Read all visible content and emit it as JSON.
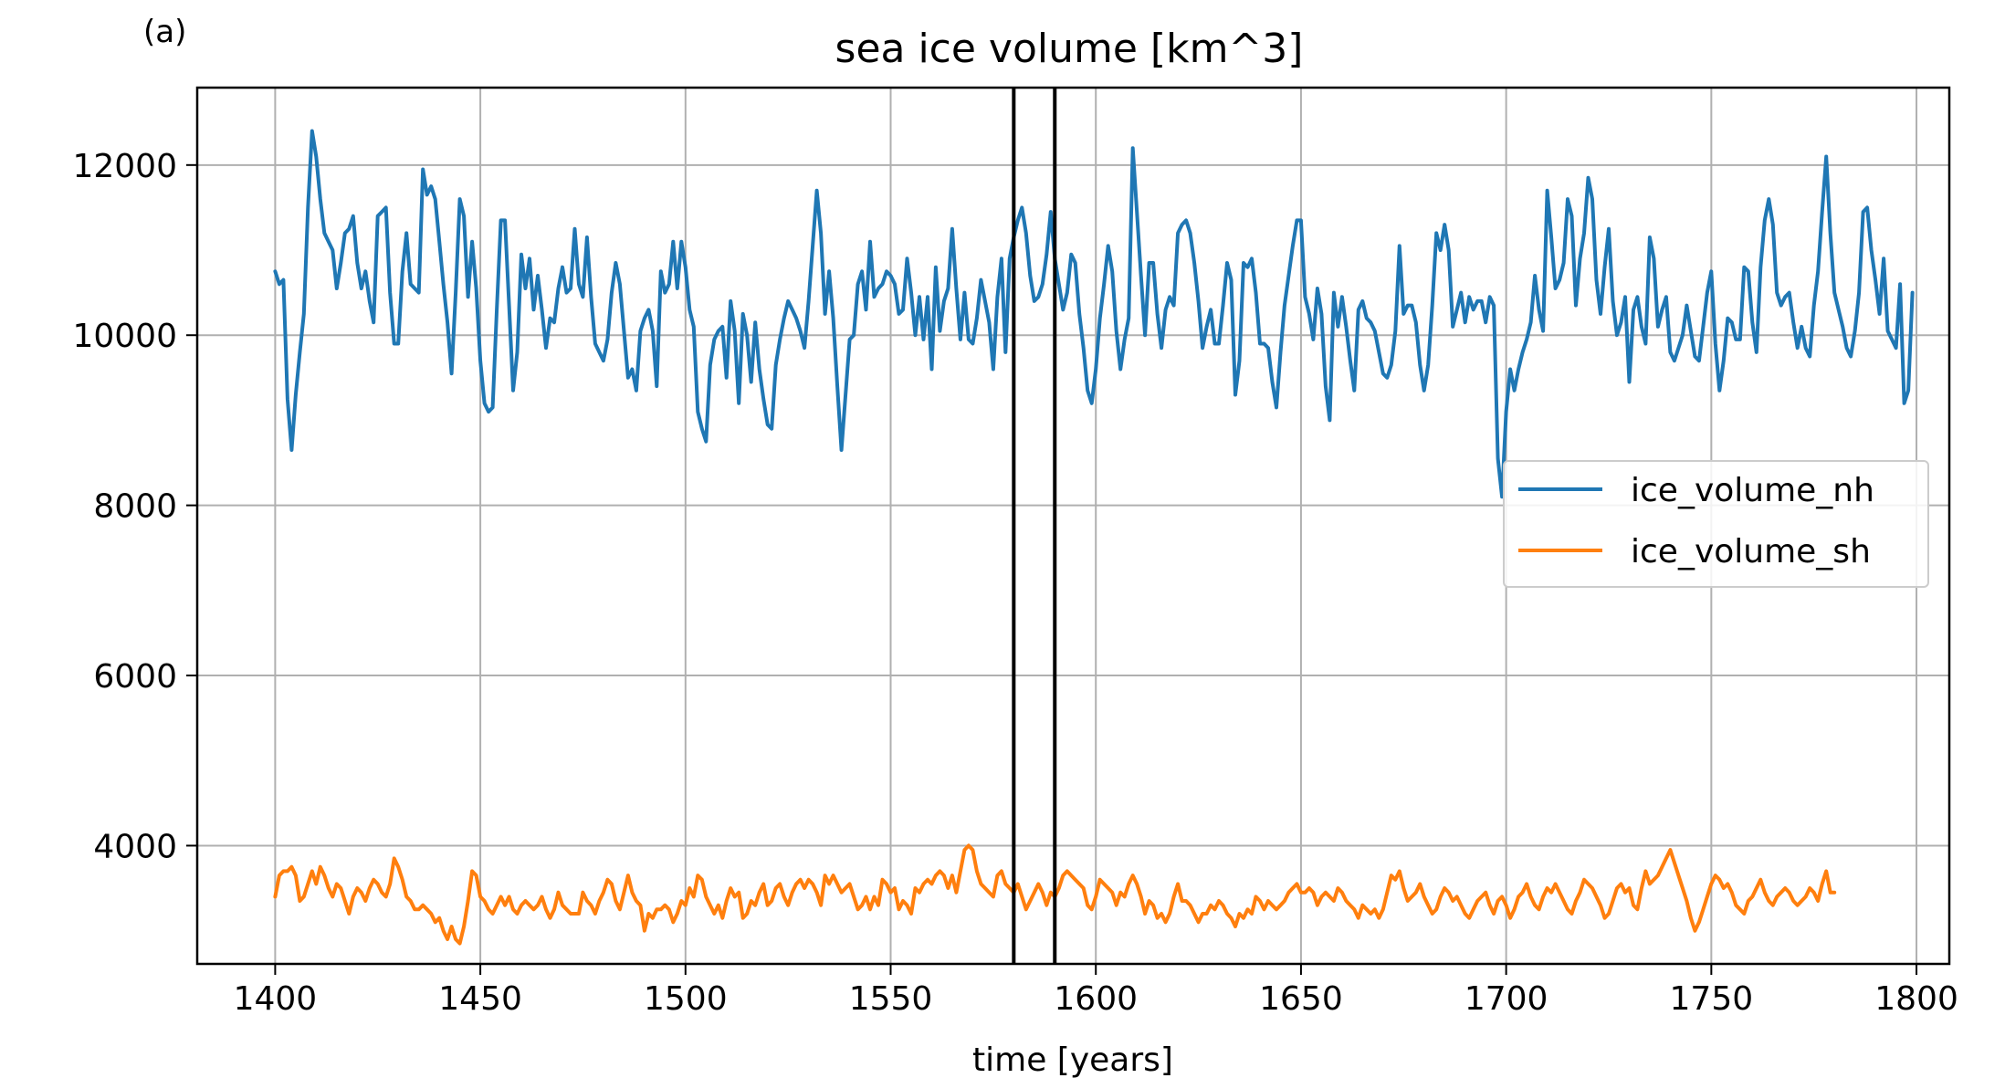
{
  "panel_label": "(a)",
  "chart_data": {
    "type": "line",
    "title": "sea ice volume [km^3]",
    "xlabel": "time [years]",
    "ylabel": "",
    "xlim": [
      1381,
      1808
    ],
    "ylim": [
      2610,
      12910
    ],
    "xticks": [
      1400,
      1450,
      1500,
      1550,
      1600,
      1650,
      1700,
      1750,
      1800
    ],
    "yticks": [
      4000,
      6000,
      8000,
      10000,
      12000
    ],
    "xtick_labels": [
      "1400",
      "1450",
      "1500",
      "1550",
      "1600",
      "1650",
      "1700",
      "1750",
      "1800"
    ],
    "ytick_labels": [
      "4000",
      "6000",
      "8000",
      "10000",
      "12000"
    ],
    "grid": true,
    "legend_position": "center-right",
    "vlines": [
      1580,
      1590
    ],
    "vline_color": "#000000",
    "x_start": 1400,
    "x_step": 1,
    "series": [
      {
        "name": "ice_volume_nh",
        "color": "#1f77b4",
        "values": [
          10750,
          10600,
          10650,
          9250,
          8650,
          9300,
          9800,
          10250,
          11500,
          12400,
          12100,
          11600,
          11200,
          11100,
          11000,
          10550,
          10850,
          11200,
          11250,
          11400,
          10850,
          10550,
          10750,
          10400,
          10150,
          11400,
          11450,
          11500,
          10500,
          9900,
          9900,
          10750,
          11200,
          10600,
          10550,
          10500,
          11950,
          11650,
          11750,
          11600,
          11100,
          10600,
          10150,
          9550,
          10500,
          11600,
          11400,
          10450,
          11100,
          10550,
          9700,
          9200,
          9100,
          9150,
          10300,
          11350,
          11350,
          10350,
          9350,
          9800,
          10950,
          10550,
          10900,
          10300,
          10700,
          10300,
          9850,
          10200,
          10150,
          10550,
          10800,
          10500,
          10550,
          11250,
          10600,
          10450,
          11150,
          10450,
          9900,
          9800,
          9700,
          9950,
          10500,
          10850,
          10600,
          10050,
          9500,
          9600,
          9350,
          10050,
          10200,
          10300,
          10050,
          9400,
          10750,
          10500,
          10600,
          11100,
          10550,
          11100,
          10800,
          10300,
          10100,
          9100,
          8900,
          8750,
          9650,
          9950,
          10050,
          10100,
          9500,
          10400,
          10050,
          9200,
          10250,
          10000,
          9450,
          10150,
          9600,
          9250,
          8950,
          8900,
          9650,
          9950,
          10200,
          10400,
          10300,
          10200,
          10050,
          9850,
          10400,
          11050,
          11700,
          11200,
          10250,
          10750,
          10200,
          9400,
          8650,
          9300,
          9950,
          10000,
          10600,
          10750,
          10300,
          11100,
          10450,
          10550,
          10600,
          10750,
          10700,
          10600,
          10250,
          10300,
          10900,
          10500,
          10000,
          10450,
          9950,
          10450,
          9600,
          10800,
          10050,
          10400,
          10550,
          11250,
          10550,
          9950,
          10500,
          9950,
          9900,
          10200,
          10650,
          10400,
          10150,
          9600,
          10450,
          10900,
          9800,
          10900,
          11150,
          11350,
          11500,
          11200,
          10700,
          10400,
          10450,
          10600,
          10950,
          11450,
          10900,
          10600,
          10300,
          10500,
          10950,
          10850,
          10250,
          9850,
          9350,
          9200,
          9600,
          10200,
          10600,
          11050,
          10750,
          10050,
          9600,
          9950,
          10200,
          12200,
          11450,
          10700,
          10000,
          10850,
          10850,
          10250,
          9850,
          10300,
          10450,
          10350,
          11200,
          11300,
          11350,
          11200,
          10850,
          10400,
          9850,
          10100,
          10300,
          9900,
          9900,
          10350,
          10850,
          10650,
          9300,
          9700,
          10850,
          10800,
          10900,
          10500,
          9900,
          9900,
          9850,
          9450,
          9150,
          9800,
          10350,
          10700,
          11050,
          11350,
          11350,
          10450,
          10250,
          9950,
          10550,
          10250,
          9400,
          9000,
          10500,
          10100,
          10450,
          10100,
          9700,
          9350,
          10300,
          10400,
          10200,
          10150,
          10050,
          9800,
          9550,
          9500,
          9650,
          10050,
          11050,
          10250,
          10350,
          10350,
          10150,
          9650,
          9350,
          9650,
          10350,
          11200,
          11000,
          11300,
          11000,
          10100,
          10300,
          10500,
          10150,
          10450,
          10300,
          10400,
          10400,
          10150,
          10450,
          10350,
          8550,
          8100,
          9100,
          9600,
          9350,
          9600,
          9800,
          9950,
          10150,
          10700,
          10300,
          10050,
          11700,
          11150,
          10550,
          10650,
          10850,
          11600,
          11400,
          10350,
          10900,
          11200,
          11850,
          11600,
          10650,
          10250,
          10800,
          11250,
          10400,
          10000,
          10150,
          10450,
          9450,
          10300,
          10450,
          10100,
          9900,
          11150,
          10900,
          10100,
          10300,
          10450,
          9800,
          9700,
          9850,
          10000,
          10350,
          10050,
          9750,
          9700,
          10100,
          10500,
          10750,
          9900,
          9350,
          9700,
          10200,
          10150,
          9950,
          9950,
          10800,
          10750,
          10150,
          9800,
          10800,
          11350,
          11600,
          11300,
          10500,
          10350,
          10450,
          10500,
          10150,
          9850,
          10100,
          9850,
          9750,
          10350,
          10750,
          11450,
          12100,
          11200,
          10500,
          10300,
          10100,
          9850,
          9750,
          10050,
          10500,
          11450,
          11500,
          11000,
          10650,
          10250,
          10900,
          10050,
          9950,
          9850,
          10600,
          9200,
          9350,
          10500
        ]
      },
      {
        "name": "ice_volume_sh",
        "color": "#ff7f0e",
        "values": [
          3400,
          3650,
          3700,
          3700,
          3750,
          3650,
          3350,
          3400,
          3550,
          3700,
          3550,
          3750,
          3650,
          3500,
          3400,
          3550,
          3500,
          3350,
          3200,
          3400,
          3500,
          3450,
          3350,
          3500,
          3600,
          3550,
          3450,
          3400,
          3550,
          3850,
          3750,
          3600,
          3400,
          3350,
          3250,
          3250,
          3300,
          3250,
          3200,
          3100,
          3150,
          3000,
          2900,
          3050,
          2900,
          2850,
          3050,
          3350,
          3700,
          3650,
          3400,
          3350,
          3250,
          3200,
          3300,
          3400,
          3300,
          3400,
          3250,
          3200,
          3300,
          3350,
          3300,
          3250,
          3300,
          3400,
          3250,
          3150,
          3250,
          3450,
          3300,
          3250,
          3200,
          3200,
          3200,
          3450,
          3350,
          3300,
          3200,
          3350,
          3450,
          3600,
          3550,
          3350,
          3250,
          3450,
          3650,
          3450,
          3350,
          3300,
          3000,
          3200,
          3150,
          3250,
          3250,
          3300,
          3250,
          3100,
          3200,
          3350,
          3300,
          3500,
          3400,
          3650,
          3600,
          3400,
          3300,
          3200,
          3300,
          3150,
          3350,
          3500,
          3400,
          3450,
          3150,
          3200,
          3350,
          3300,
          3450,
          3550,
          3300,
          3350,
          3500,
          3550,
          3400,
          3300,
          3450,
          3550,
          3600,
          3500,
          3600,
          3550,
          3450,
          3300,
          3650,
          3550,
          3650,
          3550,
          3450,
          3500,
          3550,
          3400,
          3250,
          3300,
          3400,
          3250,
          3400,
          3300,
          3600,
          3550,
          3450,
          3500,
          3250,
          3350,
          3300,
          3200,
          3500,
          3450,
          3550,
          3600,
          3550,
          3650,
          3700,
          3650,
          3500,
          3650,
          3450,
          3700,
          3950,
          4000,
          3950,
          3700,
          3550,
          3500,
          3450,
          3400,
          3650,
          3700,
          3550,
          3500,
          3450,
          3550,
          3400,
          3250,
          3350,
          3450,
          3550,
          3450,
          3300,
          3450,
          3400,
          3500,
          3650,
          3700,
          3650,
          3600,
          3550,
          3500,
          3300,
          3250,
          3400,
          3600,
          3550,
          3500,
          3450,
          3300,
          3450,
          3400,
          3550,
          3650,
          3550,
          3400,
          3200,
          3350,
          3300,
          3150,
          3200,
          3100,
          3200,
          3400,
          3550,
          3350,
          3350,
          3300,
          3200,
          3100,
          3200,
          3200,
          3300,
          3250,
          3350,
          3300,
          3200,
          3150,
          3050,
          3200,
          3150,
          3250,
          3200,
          3400,
          3350,
          3250,
          3350,
          3300,
          3250,
          3300,
          3350,
          3450,
          3500,
          3550,
          3450,
          3450,
          3500,
          3450,
          3300,
          3400,
          3450,
          3400,
          3350,
          3500,
          3450,
          3350,
          3300,
          3250,
          3150,
          3300,
          3250,
          3200,
          3250,
          3150,
          3250,
          3450,
          3650,
          3600,
          3700,
          3500,
          3350,
          3400,
          3450,
          3550,
          3400,
          3300,
          3200,
          3250,
          3400,
          3500,
          3450,
          3350,
          3400,
          3300,
          3200,
          3150,
          3250,
          3350,
          3400,
          3450,
          3300,
          3200,
          3350,
          3400,
          3300,
          3150,
          3250,
          3400,
          3450,
          3550,
          3400,
          3300,
          3250,
          3400,
          3500,
          3450,
          3550,
          3450,
          3350,
          3250,
          3200,
          3350,
          3450,
          3600,
          3550,
          3500,
          3400,
          3300,
          3150,
          3200,
          3350,
          3500,
          3550,
          3450,
          3500,
          3300,
          3250,
          3500,
          3700,
          3550,
          3600,
          3650,
          3750,
          3850,
          3950,
          3800,
          3650,
          3500,
          3350,
          3150,
          3000,
          3100,
          3250,
          3400,
          3550,
          3650,
          3600,
          3500,
          3550,
          3450,
          3300,
          3250,
          3200,
          3350,
          3400,
          3500,
          3600,
          3450,
          3350,
          3300,
          3400,
          3450,
          3500,
          3450,
          3350,
          3300,
          3350,
          3400,
          3500,
          3450,
          3350,
          3550,
          3700,
          3450,
          3450
        ]
      }
    ]
  }
}
